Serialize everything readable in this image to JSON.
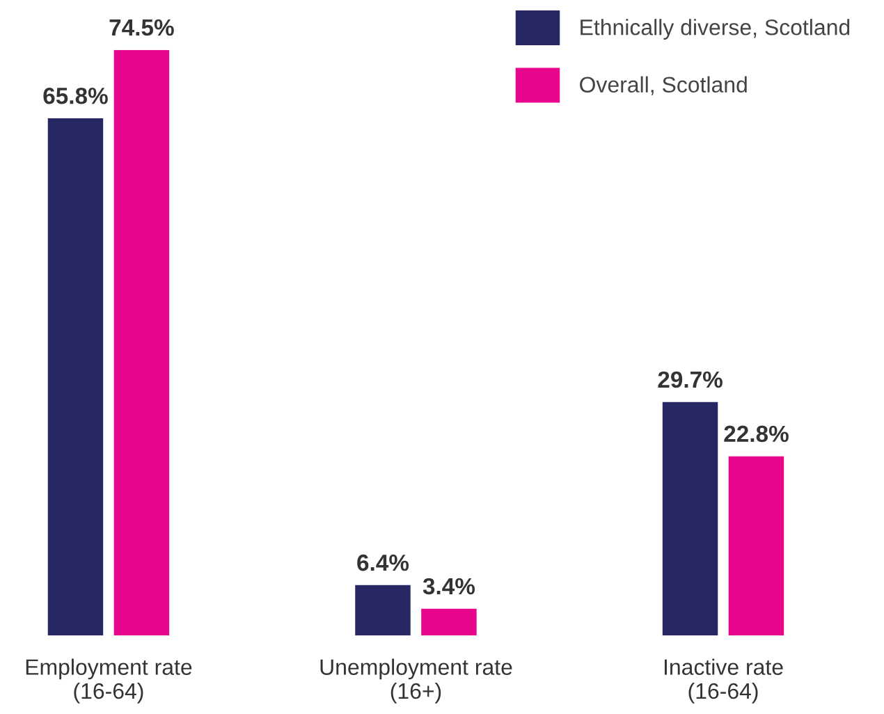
{
  "chart_data": {
    "type": "bar",
    "categories": [
      "Employment rate\n(16-64)",
      "Unemployment rate\n(16+)",
      "Inactive rate\n(16-64)"
    ],
    "series": [
      {
        "name": "Ethnically diverse, Scotland",
        "color": "#272863",
        "values": [
          65.8,
          6.4,
          29.7
        ],
        "value_labels": [
          "65.8%",
          "6.4%",
          "29.7%"
        ]
      },
      {
        "name": "Overall, Scotland",
        "color": "#e8068c",
        "values": [
          74.5,
          3.4,
          22.8
        ],
        "value_labels": [
          "74.5%",
          "3.4%",
          "22.8%"
        ]
      }
    ],
    "legend": "top right",
    "grid": false
  }
}
